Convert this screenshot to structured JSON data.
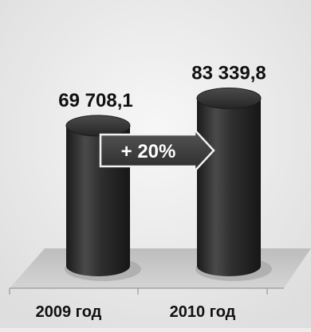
{
  "chart_data": {
    "type": "bar",
    "categories": [
      "2009 год",
      "2010 год"
    ],
    "values": [
      69708.1,
      83339.8
    ],
    "value_labels": [
      "69 708,1",
      "83 339,8"
    ],
    "annotation": "+ 20%",
    "title": "",
    "xlabel": "",
    "ylabel": "",
    "ylim": [
      0,
      95000
    ],
    "grid": false,
    "legend": "none",
    "colors": {
      "bar": "#2b2b2b",
      "bar_highlight": "#4a4a4a",
      "bar_top": "#3a3a3a",
      "floor": "#c8c8c8",
      "background": "#ececec",
      "arrow": "#3c3c3c",
      "text": "#111111",
      "annotation_text": "#ffffff"
    }
  }
}
